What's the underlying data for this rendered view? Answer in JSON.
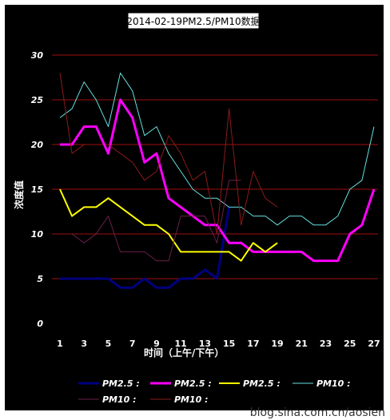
{
  "chart_data": {
    "type": "line",
    "title": "2014-02-19PM2.5/PM10数据",
    "xlabel": "时间（上午/下午）",
    "ylabel": "浓度值",
    "x": [
      1,
      2,
      3,
      4,
      5,
      6,
      7,
      8,
      9,
      10,
      11,
      12,
      13,
      14,
      15,
      16,
      17,
      18,
      19,
      20,
      21,
      22,
      23,
      24,
      25,
      26,
      27
    ],
    "x_tick_labels": [
      "1",
      "3",
      "5",
      "7",
      "9",
      "11",
      "13",
      "15",
      "17",
      "19",
      "21",
      "23",
      "25",
      "27"
    ],
    "ylim": [
      0,
      30
    ],
    "y_tick_labels": [
      "0",
      "5",
      "10",
      "15",
      "20",
      "25",
      "30"
    ],
    "grid": true,
    "legend_position": "bottom",
    "series": [
      {
        "name": "PM2.5 :",
        "color": "#000080",
        "width": 3,
        "values": [
          5,
          5,
          5,
          5,
          5,
          4,
          4,
          5,
          4,
          4,
          5,
          5,
          6,
          5,
          13,
          null,
          null,
          null,
          null,
          null,
          null,
          null,
          null,
          null,
          null,
          null,
          null
        ]
      },
      {
        "name": "PM2.5 :",
        "color": "#ff00ff",
        "width": 3,
        "values": [
          20,
          20,
          22,
          22,
          19,
          25,
          23,
          18,
          19,
          14,
          13,
          12,
          11,
          11,
          9,
          9,
          8,
          8,
          8,
          8,
          8,
          7,
          7,
          7,
          10,
          11,
          15
        ]
      },
      {
        "name": "PM2.5 :",
        "color": "#ffff00",
        "width": 2,
        "values": [
          15,
          12,
          13,
          13,
          14,
          13,
          12,
          11,
          11,
          10,
          8,
          8,
          8,
          8,
          8,
          7,
          9,
          8,
          9,
          null,
          null,
          null,
          null,
          null,
          null,
          null,
          null
        ]
      },
      {
        "name": "PM10 :",
        "color": "#66e0e0",
        "width": 1,
        "values": [
          23,
          24,
          27,
          25,
          22,
          28,
          26,
          21,
          22,
          19,
          17,
          15,
          14,
          14,
          13,
          13,
          12,
          12,
          11,
          12,
          12,
          11,
          11,
          12,
          15,
          16,
          22
        ]
      },
      {
        "name": "PM10 :",
        "color": "#6b1f4a",
        "width": 1,
        "values": [
          null,
          10,
          9,
          10,
          12,
          8,
          8,
          8,
          7,
          7,
          12,
          12,
          12,
          9,
          16,
          16,
          null,
          null,
          null,
          null,
          null,
          null,
          null,
          null,
          null,
          null,
          null
        ]
      },
      {
        "name": "PM10 :",
        "color": "#8b1a1a",
        "width": 1,
        "values": [
          28,
          19,
          20,
          null,
          20,
          19,
          18,
          16,
          17,
          21,
          19,
          16,
          17,
          10,
          24,
          11,
          17,
          14,
          13,
          null,
          null,
          null,
          null,
          null,
          null,
          null,
          null
        ]
      }
    ]
  },
  "watermark": "blog.sina.com.cn/aosien"
}
